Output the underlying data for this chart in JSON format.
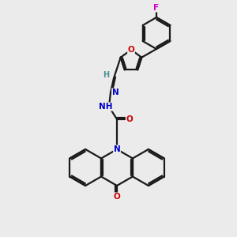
{
  "background_color": "#ebebeb",
  "bond_color": "#1a1a1a",
  "atom_colors": {
    "N": "#0000cc",
    "O": "#cc0000",
    "F": "#cc00cc",
    "H": "#4a9090"
  },
  "bond_lw": 1.6,
  "fontsize": 7.5
}
